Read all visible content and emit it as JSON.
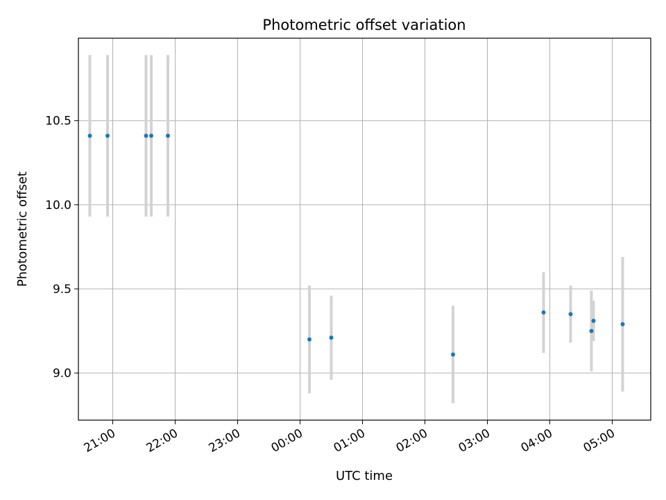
{
  "chart_data": {
    "type": "scatter",
    "title": "Photometric offset variation",
    "xlabel": "UTC time",
    "ylabel": "Photometric offset",
    "grid": true,
    "x_range": [
      "20:27",
      "05:37"
    ],
    "ylim": [
      8.72,
      10.99
    ],
    "x_ticks": [
      "21:00",
      "22:00",
      "23:00",
      "00:00",
      "01:00",
      "02:00",
      "03:00",
      "04:00",
      "05:00"
    ],
    "y_ticks": [
      "9.0",
      "9.5",
      "10.0",
      "10.5"
    ],
    "marker_color": "#1f77b4",
    "errorbar_color": "#d3d3d3",
    "points": [
      {
        "x": "20:38",
        "y": 10.41,
        "yerr": 0.48
      },
      {
        "x": "20:55",
        "y": 10.41,
        "yerr": 0.48
      },
      {
        "x": "21:32",
        "y": 10.41,
        "yerr": 0.48
      },
      {
        "x": "21:37",
        "y": 10.41,
        "yerr": 0.48
      },
      {
        "x": "21:53",
        "y": 10.41,
        "yerr": 0.48
      },
      {
        "x": "00:09",
        "y": 9.2,
        "yerr": 0.32
      },
      {
        "x": "00:30",
        "y": 9.21,
        "yerr": 0.25
      },
      {
        "x": "02:27",
        "y": 9.11,
        "yerr": 0.29
      },
      {
        "x": "03:54",
        "y": 9.36,
        "yerr": 0.24
      },
      {
        "x": "04:20",
        "y": 9.35,
        "yerr": 0.17
      },
      {
        "x": "04:40",
        "y": 9.25,
        "yerr": 0.24
      },
      {
        "x": "04:42",
        "y": 9.31,
        "yerr": 0.12
      },
      {
        "x": "05:10",
        "y": 9.29,
        "yerr": 0.4
      }
    ]
  }
}
